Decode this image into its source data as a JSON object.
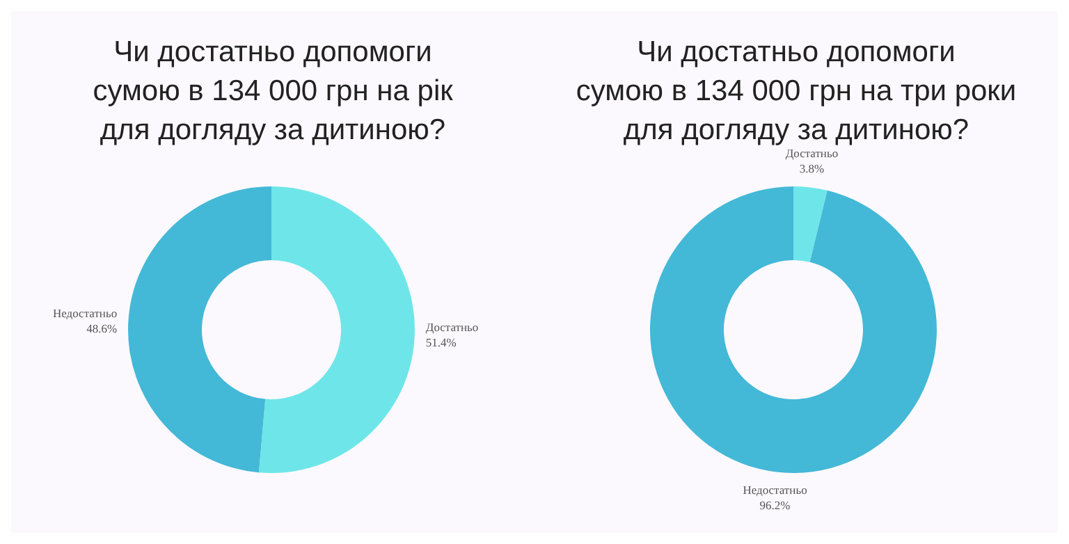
{
  "chart_data": [
    {
      "type": "donut",
      "title": "Чи достатньо допомоги\nсумою в 134 000 грн на рік\nдля догляду за дитиною?",
      "categories": [
        "Достатньо",
        "Недостатньо"
      ],
      "values": [
        51.4,
        48.6
      ],
      "colors": [
        "#6ee6e9",
        "#44b8d7"
      ],
      "value_labels": [
        "51.4%",
        "48.6%"
      ],
      "legend": false
    },
    {
      "type": "donut",
      "title": "Чи достатньо допомоги\nсумою в 134 000 грн на три роки\nдля догляду за дитиною?",
      "categories": [
        "Достатньо",
        "Недостатньо"
      ],
      "values": [
        3.8,
        96.2
      ],
      "colors": [
        "#6ee6e9",
        "#44b8d7"
      ],
      "value_labels": [
        "3.8%",
        "96.2%"
      ],
      "legend": false
    }
  ]
}
